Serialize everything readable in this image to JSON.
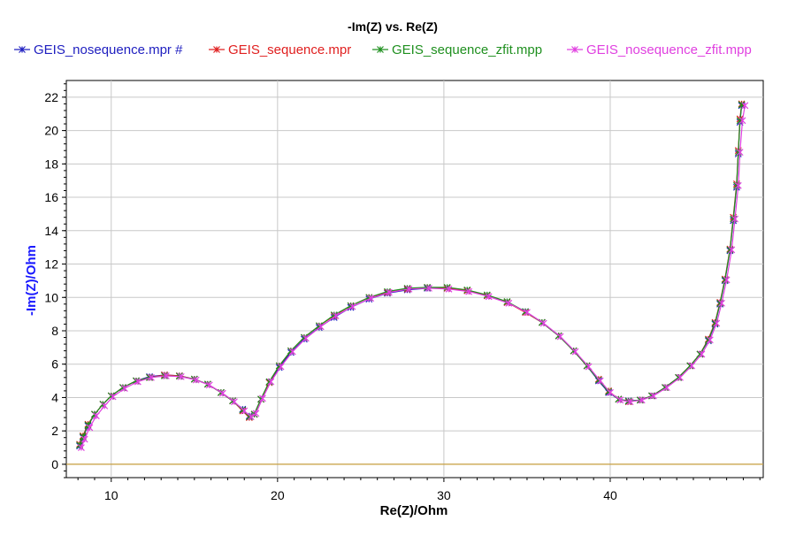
{
  "chart_data": {
    "type": "line",
    "title": "-Im(Z) vs. Re(Z)",
    "xlabel": "Re(Z)/Ohm",
    "ylabel": "-Im(Z)/Ohm",
    "xlim": [
      7.3,
      49.2
    ],
    "ylim": [
      -0.8,
      23.0
    ],
    "xticks": [
      10,
      20,
      30,
      40
    ],
    "yticks": [
      0,
      2,
      4,
      6,
      8,
      10,
      12,
      14,
      16,
      18,
      20,
      22
    ],
    "grid": true,
    "legend_position": "top",
    "zero_line_color": "#c8a040",
    "series": [
      {
        "name": "GEIS_nosequence.mpr #",
        "color": "#2020c0",
        "values": [
          [
            8.1,
            1.1
          ],
          [
            8.3,
            1.6
          ],
          [
            8.6,
            2.3
          ],
          [
            9.0,
            3.0
          ],
          [
            9.5,
            3.6
          ],
          [
            10.0,
            4.1
          ],
          [
            10.7,
            4.6
          ],
          [
            11.5,
            5.0
          ],
          [
            12.3,
            5.25
          ],
          [
            13.2,
            5.35
          ],
          [
            14.1,
            5.3
          ],
          [
            15.0,
            5.1
          ],
          [
            15.8,
            4.8
          ],
          [
            16.6,
            4.3
          ],
          [
            17.3,
            3.8
          ],
          [
            17.9,
            3.3
          ],
          [
            18.3,
            2.9
          ],
          [
            18.6,
            3.0
          ],
          [
            19.0,
            3.9
          ],
          [
            19.5,
            4.9
          ],
          [
            20.1,
            5.8
          ],
          [
            20.8,
            6.7
          ],
          [
            21.6,
            7.5
          ],
          [
            22.5,
            8.2
          ],
          [
            23.4,
            8.8
          ],
          [
            24.4,
            9.4
          ],
          [
            25.5,
            9.9
          ],
          [
            26.6,
            10.25
          ],
          [
            27.8,
            10.45
          ],
          [
            29.0,
            10.55
          ],
          [
            30.2,
            10.55
          ],
          [
            31.4,
            10.4
          ],
          [
            32.6,
            10.1
          ],
          [
            33.8,
            9.7
          ],
          [
            34.9,
            9.15
          ],
          [
            35.9,
            8.5
          ],
          [
            36.9,
            7.7
          ],
          [
            37.8,
            6.8
          ],
          [
            38.6,
            5.9
          ],
          [
            39.3,
            5.0
          ],
          [
            39.9,
            4.3
          ],
          [
            40.5,
            3.9
          ],
          [
            41.1,
            3.8
          ],
          [
            41.8,
            3.85
          ],
          [
            42.5,
            4.1
          ],
          [
            43.3,
            4.6
          ],
          [
            44.1,
            5.2
          ],
          [
            44.8,
            5.9
          ],
          [
            45.4,
            6.6
          ],
          [
            45.9,
            7.4
          ],
          [
            46.3,
            8.4
          ],
          [
            46.6,
            9.6
          ],
          [
            46.9,
            11.0
          ],
          [
            47.2,
            12.8
          ],
          [
            47.4,
            14.6
          ],
          [
            47.6,
            16.6
          ],
          [
            47.7,
            18.6
          ],
          [
            47.8,
            20.5
          ],
          [
            47.9,
            21.5
          ]
        ]
      },
      {
        "name": "GEIS_sequence.mpr",
        "color": "#e02020",
        "values": [
          [
            8.1,
            1.2
          ],
          [
            8.3,
            1.7
          ],
          [
            8.6,
            2.4
          ],
          [
            9.0,
            3.0
          ],
          [
            9.5,
            3.6
          ],
          [
            10.0,
            4.1
          ],
          [
            10.7,
            4.6
          ],
          [
            11.5,
            5.0
          ],
          [
            12.3,
            5.2
          ],
          [
            13.2,
            5.35
          ],
          [
            14.1,
            5.3
          ],
          [
            15.0,
            5.1
          ],
          [
            15.8,
            4.8
          ],
          [
            16.6,
            4.3
          ],
          [
            17.3,
            3.8
          ],
          [
            17.9,
            3.2
          ],
          [
            18.3,
            2.8
          ],
          [
            18.6,
            3.0
          ],
          [
            19.0,
            3.9
          ],
          [
            19.5,
            4.9
          ],
          [
            20.1,
            5.9
          ],
          [
            20.8,
            6.8
          ],
          [
            21.6,
            7.6
          ],
          [
            22.5,
            8.3
          ],
          [
            23.4,
            8.9
          ],
          [
            24.4,
            9.5
          ],
          [
            25.5,
            10.0
          ],
          [
            26.6,
            10.3
          ],
          [
            27.8,
            10.5
          ],
          [
            29.0,
            10.6
          ],
          [
            30.2,
            10.55
          ],
          [
            31.4,
            10.4
          ],
          [
            32.6,
            10.1
          ],
          [
            33.8,
            9.7
          ],
          [
            34.9,
            9.1
          ],
          [
            35.9,
            8.5
          ],
          [
            36.9,
            7.7
          ],
          [
            37.8,
            6.8
          ],
          [
            38.6,
            5.9
          ],
          [
            39.3,
            5.1
          ],
          [
            39.9,
            4.4
          ],
          [
            40.5,
            3.9
          ],
          [
            41.1,
            3.75
          ],
          [
            41.8,
            3.85
          ],
          [
            42.5,
            4.1
          ],
          [
            43.3,
            4.6
          ],
          [
            44.1,
            5.2
          ],
          [
            44.8,
            5.9
          ],
          [
            45.4,
            6.6
          ],
          [
            45.9,
            7.5
          ],
          [
            46.3,
            8.5
          ],
          [
            46.6,
            9.7
          ],
          [
            46.9,
            11.1
          ],
          [
            47.2,
            12.9
          ],
          [
            47.4,
            14.8
          ],
          [
            47.6,
            16.8
          ],
          [
            47.7,
            18.8
          ],
          [
            47.8,
            20.7
          ],
          [
            47.9,
            21.6
          ]
        ]
      },
      {
        "name": "GEIS_sequence_zfit.mpp",
        "color": "#209020",
        "values": [
          [
            8.1,
            1.15
          ],
          [
            8.3,
            1.65
          ],
          [
            8.6,
            2.35
          ],
          [
            9.0,
            3.0
          ],
          [
            9.5,
            3.6
          ],
          [
            10.0,
            4.1
          ],
          [
            10.7,
            4.6
          ],
          [
            11.5,
            5.0
          ],
          [
            12.3,
            5.2
          ],
          [
            13.2,
            5.3
          ],
          [
            14.1,
            5.28
          ],
          [
            15.0,
            5.1
          ],
          [
            15.8,
            4.8
          ],
          [
            16.6,
            4.3
          ],
          [
            17.3,
            3.8
          ],
          [
            17.9,
            3.25
          ],
          [
            18.3,
            2.85
          ],
          [
            18.6,
            3.0
          ],
          [
            19.0,
            3.9
          ],
          [
            19.5,
            4.95
          ],
          [
            20.1,
            5.9
          ],
          [
            20.8,
            6.8
          ],
          [
            21.6,
            7.6
          ],
          [
            22.5,
            8.3
          ],
          [
            23.4,
            8.95
          ],
          [
            24.4,
            9.5
          ],
          [
            25.5,
            10.0
          ],
          [
            26.6,
            10.35
          ],
          [
            27.8,
            10.55
          ],
          [
            29.0,
            10.6
          ],
          [
            30.2,
            10.6
          ],
          [
            31.4,
            10.45
          ],
          [
            32.6,
            10.15
          ],
          [
            33.8,
            9.75
          ],
          [
            34.9,
            9.15
          ],
          [
            35.9,
            8.5
          ],
          [
            36.9,
            7.7
          ],
          [
            37.8,
            6.8
          ],
          [
            38.6,
            5.9
          ],
          [
            39.3,
            5.05
          ],
          [
            39.9,
            4.35
          ],
          [
            40.5,
            3.9
          ],
          [
            41.1,
            3.78
          ],
          [
            41.8,
            3.85
          ],
          [
            42.5,
            4.1
          ],
          [
            43.3,
            4.6
          ],
          [
            44.1,
            5.2
          ],
          [
            44.8,
            5.9
          ],
          [
            45.4,
            6.6
          ],
          [
            45.9,
            7.45
          ],
          [
            46.3,
            8.45
          ],
          [
            46.6,
            9.65
          ],
          [
            46.9,
            11.05
          ],
          [
            47.2,
            12.85
          ],
          [
            47.4,
            14.7
          ],
          [
            47.6,
            16.7
          ],
          [
            47.7,
            18.7
          ],
          [
            47.8,
            20.6
          ],
          [
            47.9,
            21.55
          ]
        ]
      },
      {
        "name": "GEIS_nosequence_zfit.mpp",
        "color": "#e040e0",
        "values": [
          [
            8.2,
            1.0
          ],
          [
            8.4,
            1.5
          ],
          [
            8.7,
            2.2
          ],
          [
            9.1,
            2.9
          ],
          [
            9.6,
            3.5
          ],
          [
            10.1,
            4.05
          ],
          [
            10.8,
            4.55
          ],
          [
            11.6,
            4.95
          ],
          [
            12.4,
            5.2
          ],
          [
            13.3,
            5.3
          ],
          [
            14.2,
            5.25
          ],
          [
            15.1,
            5.05
          ],
          [
            15.9,
            4.75
          ],
          [
            16.7,
            4.25
          ],
          [
            17.4,
            3.75
          ],
          [
            18.0,
            3.2
          ],
          [
            18.4,
            2.85
          ],
          [
            18.7,
            3.05
          ],
          [
            19.1,
            3.95
          ],
          [
            19.6,
            4.95
          ],
          [
            20.2,
            5.85
          ],
          [
            20.9,
            6.75
          ],
          [
            21.7,
            7.55
          ],
          [
            22.6,
            8.25
          ],
          [
            23.5,
            8.9
          ],
          [
            24.5,
            9.45
          ],
          [
            25.6,
            9.95
          ],
          [
            26.7,
            10.3
          ],
          [
            27.9,
            10.5
          ],
          [
            29.1,
            10.55
          ],
          [
            30.3,
            10.5
          ],
          [
            31.5,
            10.35
          ],
          [
            32.7,
            10.05
          ],
          [
            33.9,
            9.65
          ],
          [
            35.0,
            9.1
          ],
          [
            36.0,
            8.45
          ],
          [
            37.0,
            7.65
          ],
          [
            37.9,
            6.75
          ],
          [
            38.7,
            5.85
          ],
          [
            39.4,
            5.0
          ],
          [
            40.0,
            4.3
          ],
          [
            40.6,
            3.85
          ],
          [
            41.2,
            3.75
          ],
          [
            41.9,
            3.85
          ],
          [
            42.6,
            4.1
          ],
          [
            43.4,
            4.6
          ],
          [
            44.2,
            5.2
          ],
          [
            44.9,
            5.9
          ],
          [
            45.5,
            6.6
          ],
          [
            46.0,
            7.45
          ],
          [
            46.4,
            8.45
          ],
          [
            46.7,
            9.65
          ],
          [
            47.0,
            11.05
          ],
          [
            47.3,
            12.85
          ],
          [
            47.5,
            14.7
          ],
          [
            47.7,
            16.7
          ],
          [
            47.8,
            18.7
          ],
          [
            47.95,
            20.6
          ],
          [
            48.1,
            21.5
          ]
        ]
      }
    ]
  }
}
